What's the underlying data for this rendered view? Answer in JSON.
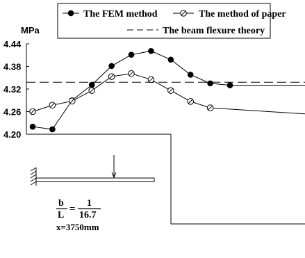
{
  "chart_data": {
    "type": "line",
    "ylabel": "MPa",
    "ylim": [
      4.2,
      4.44
    ],
    "yticks": [
      "4.44",
      "4.38",
      "4.32",
      "4.26",
      "4.20"
    ],
    "series": [
      {
        "name": "The FEM method",
        "marker": "filled-circle",
        "color": "#000000",
        "values": [
          4.22,
          4.213,
          4.29,
          4.331,
          4.381,
          4.411,
          4.421,
          4.398,
          4.358,
          4.335,
          4.33,
          4.33
        ]
      },
      {
        "name": "The method of paper",
        "marker": "crossed-circle",
        "color": "#000000",
        "values": [
          4.26,
          4.277,
          4.288,
          4.316,
          4.353,
          4.361,
          4.345,
          4.316,
          4.287,
          4.27,
          4.254
        ]
      },
      {
        "name": "The beam flexure theory",
        "marker": "dashed",
        "color": "#000000",
        "values": [
          4.338,
          4.338
        ]
      }
    ],
    "legend": {
      "placement": "top-right"
    },
    "annotation": {
      "ratio_numerator_left": "b",
      "ratio_denominator_left": "L",
      "ratio_equals": "=",
      "ratio_numerator_right": "1",
      "ratio_denominator_right": "16.7",
      "position_text": "x=3750mm"
    }
  }
}
